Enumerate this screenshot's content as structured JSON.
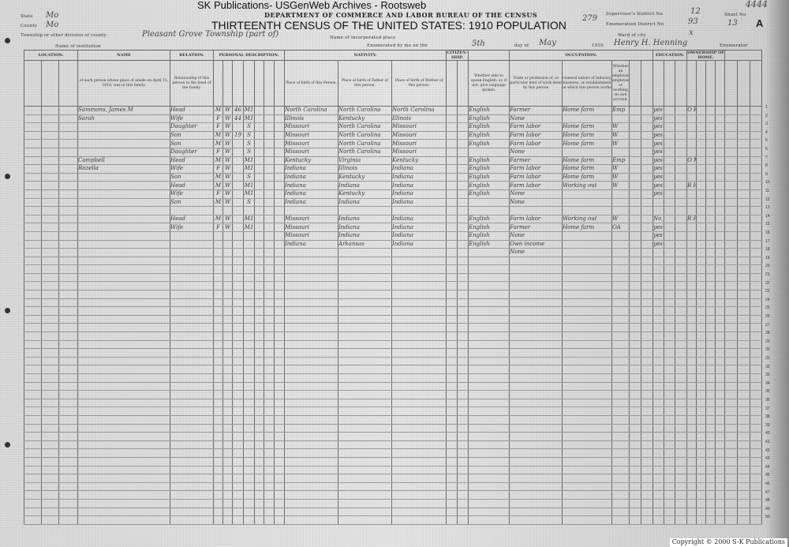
{
  "watermark": "SK Publications- USGenWeb Archives - Rootsweb",
  "header": {
    "department": "DEPARTMENT OF COMMERCE AND LABOR BUREAU OF THE CENSUS",
    "title": "THIRTEENTH CENSUS OF THE UNITED STATES: 1910 POPULATION",
    "page_stamp": "279",
    "corner_number": "4444",
    "state_label": "State",
    "state_value": "Mo",
    "county_label": "County",
    "county_value": "Mo",
    "township_label": "Township or other division of county",
    "township_value": "Pleasant Grove Township (part of)",
    "institution_label": "Name of institution",
    "incorporated_label": "Name of incorporated place",
    "supervisor_label": "Supervisor's District No",
    "supervisor_value": "12",
    "enumeration_label": "Enumeration District No",
    "enumeration_value": "93",
    "ward_label": "Ward of city",
    "ward_value": "x",
    "sheet_label": "Sheet No",
    "sheet_value": "13",
    "sheet_side": "A",
    "enumerated_label": "Enumerated by me on the",
    "day_value": "5th",
    "day_of_label": "day of",
    "month_value": "May",
    "year_label": "1910",
    "enumerator_value": "Henry H. Henning",
    "enumerator_label": "Enumerator"
  },
  "column_groups": {
    "location": "LOCATION.",
    "name": "NAME",
    "relation": "RELATION.",
    "personal": "PERSONAL DESCRIPTION.",
    "nativity": "NATIVITY.",
    "citizenship": "CITIZEN-SHIP.",
    "occupation": "OCCUPATION.",
    "education": "EDUCATION.",
    "ownership": "OWNERSHIP OF HOME."
  },
  "column_headers": {
    "name": "of each person whose place of abode on April 15, 1910, was in this family.",
    "relation": "Relationship of this person to the head of the family.",
    "birth_self": "Place of birth of this Person.",
    "birth_father": "Place of birth of Father of this person.",
    "birth_mother": "Place of birth of Mother of this person.",
    "language": "Whether able to speak English; or, if not, give language spoken.",
    "trade": "Trade or profession of, or particular kind of work done by this person",
    "industry": "General nature of industry, business, or establishment in which this person works",
    "employer": "Whether an employer, employee, or working on own account."
  },
  "rows": [
    {
      "name": "Sammons, James M",
      "relation": "Head",
      "sex": "M",
      "race": "W",
      "age": "46",
      "marital": "M1",
      "bs": "North Carolina",
      "bf": "North Carolina",
      "bm": "North Carolina",
      "lang": "English",
      "trade": "Farmer",
      "ind": "Home farm",
      "cls": "Emp",
      "edu": "yes yes",
      "own": "O F 131"
    },
    {
      "name": "Sarah",
      "relation": "Wife",
      "sex": "F",
      "race": "W",
      "age": "44",
      "marital": "M1",
      "bs": "Illinois",
      "bf": "Kentucky",
      "bm": "Illinois",
      "lang": "English",
      "trade": "None",
      "ind": "",
      "cls": "",
      "edu": "yes No",
      "own": ""
    },
    {
      "name": "",
      "relation": "Daughter",
      "sex": "F",
      "race": "W",
      "age": "",
      "marital": "S",
      "bs": "Missouri",
      "bf": "North Carolina",
      "bm": "Missouri",
      "lang": "English",
      "trade": "Farm labor",
      "ind": "Home farm",
      "cls": "W",
      "edu": "yes yes",
      "own": ""
    },
    {
      "name": "",
      "relation": "Son",
      "sex": "M",
      "race": "W",
      "age": "19",
      "marital": "S",
      "bs": "Missouri",
      "bf": "North Carolina",
      "bm": "Missouri",
      "lang": "English",
      "trade": "Farm labor",
      "ind": "Home farm",
      "cls": "W",
      "edu": "yes yes",
      "own": ""
    },
    {
      "name": "",
      "relation": "Son",
      "sex": "M",
      "race": "W",
      "age": "",
      "marital": "S",
      "bs": "Missouri",
      "bf": "North Carolina",
      "bm": "Missouri",
      "lang": "English",
      "trade": "Farm labor",
      "ind": "Home farm",
      "cls": "W",
      "edu": "yes yes",
      "own": ""
    },
    {
      "name": "",
      "relation": "Daughter",
      "sex": "F",
      "race": "W",
      "age": "",
      "marital": "S",
      "bs": "Missouri",
      "bf": "North Carolina",
      "bm": "Missouri",
      "lang": "",
      "trade": "None",
      "ind": "",
      "cls": "",
      "edu": "yes",
      "own": ""
    },
    {
      "name": "Campbell",
      "relation": "Head",
      "sex": "M",
      "race": "W",
      "age": "",
      "marital": "M1",
      "bs": "Kentucky",
      "bf": "Virginia",
      "bm": "Kentucky",
      "lang": "English",
      "trade": "Farmer",
      "ind": "Home farm",
      "cls": "Emp",
      "edu": "yes yes",
      "own": "O M F 117"
    },
    {
      "name": "Rozella",
      "relation": "Wife",
      "sex": "F",
      "race": "W",
      "age": "",
      "marital": "M1",
      "bs": "Indiana",
      "bf": "Illinois",
      "bm": "Indiana",
      "lang": "English",
      "trade": "Farm labor",
      "ind": "Home farm",
      "cls": "W",
      "edu": "yes yes",
      "own": ""
    },
    {
      "name": "",
      "relation": "Son",
      "sex": "M",
      "race": "W",
      "age": "",
      "marital": "S",
      "bs": "Indiana",
      "bf": "Kentucky",
      "bm": "Indiana",
      "lang": "English",
      "trade": "Farm labor",
      "ind": "Home farm",
      "cls": "W",
      "edu": "yes yes",
      "own": ""
    },
    {
      "name": "",
      "relation": "Head",
      "sex": "M",
      "race": "W",
      "age": "",
      "marital": "M1",
      "bs": "Indiana",
      "bf": "Indiana",
      "bm": "Indiana",
      "lang": "English",
      "trade": "Farm labor",
      "ind": "Working out",
      "cls": "W",
      "edu": "yes yes",
      "own": "R H"
    },
    {
      "name": "",
      "relation": "Wife",
      "sex": "F",
      "race": "W",
      "age": "",
      "marital": "M1",
      "bs": "Indiana",
      "bf": "Kentucky",
      "bm": "Indiana",
      "lang": "English",
      "trade": "None",
      "ind": "",
      "cls": "",
      "edu": "yes yes",
      "own": ""
    },
    {
      "name": "",
      "relation": "Son",
      "sex": "M",
      "race": "W",
      "age": "",
      "marital": "S",
      "bs": "Indiana",
      "bf": "Indiana",
      "bm": "Indiana",
      "lang": "",
      "trade": "None",
      "ind": "",
      "cls": "",
      "edu": "",
      "own": ""
    },
    {
      "name": "",
      "relation": "",
      "sex": "",
      "race": "",
      "age": "",
      "marital": "",
      "bs": "",
      "bf": "",
      "bm": "",
      "lang": "",
      "trade": "",
      "ind": "",
      "cls": "",
      "edu": "",
      "own": ""
    },
    {
      "name": "",
      "relation": "Head",
      "sex": "M",
      "race": "W",
      "age": "",
      "marital": "M1",
      "bs": "Missouri",
      "bf": "Indiana",
      "bm": "Indiana",
      "lang": "English",
      "trade": "Farm labor",
      "ind": "Working out",
      "cls": "W",
      "edu": "No yes",
      "own": "R F 131"
    },
    {
      "name": "",
      "relation": "Wife",
      "sex": "F",
      "race": "W",
      "age": "",
      "marital": "M1",
      "bs": "Missouri",
      "bf": "Indiana",
      "bm": "Indiana",
      "lang": "English",
      "trade": "Farmer",
      "ind": "Home farm",
      "cls": "OA",
      "edu": "yes yes",
      "own": ""
    },
    {
      "name": "",
      "relation": "",
      "sex": "",
      "race": "",
      "age": "",
      "marital": "",
      "bs": "Missouri",
      "bf": "Indiana",
      "bm": "Indiana",
      "lang": "English",
      "trade": "None",
      "ind": "",
      "cls": "",
      "edu": "yes yes",
      "own": ""
    },
    {
      "name": "",
      "relation": "",
      "sex": "",
      "race": "",
      "age": "",
      "marital": "",
      "bs": "Indiana",
      "bf": "Arkansas",
      "bm": "Indiana",
      "lang": "English",
      "trade": "Own income",
      "ind": "",
      "cls": "",
      "edu": "yes yes",
      "own": ""
    },
    {
      "name": "",
      "relation": "",
      "sex": "",
      "race": "",
      "age": "",
      "marital": "",
      "bs": "",
      "bf": "",
      "bm": "",
      "lang": "",
      "trade": "None",
      "ind": "",
      "cls": "",
      "edu": "",
      "own": ""
    }
  ],
  "total_lines": 50,
  "copyright": "Copyright © 2000 S-K Publications"
}
